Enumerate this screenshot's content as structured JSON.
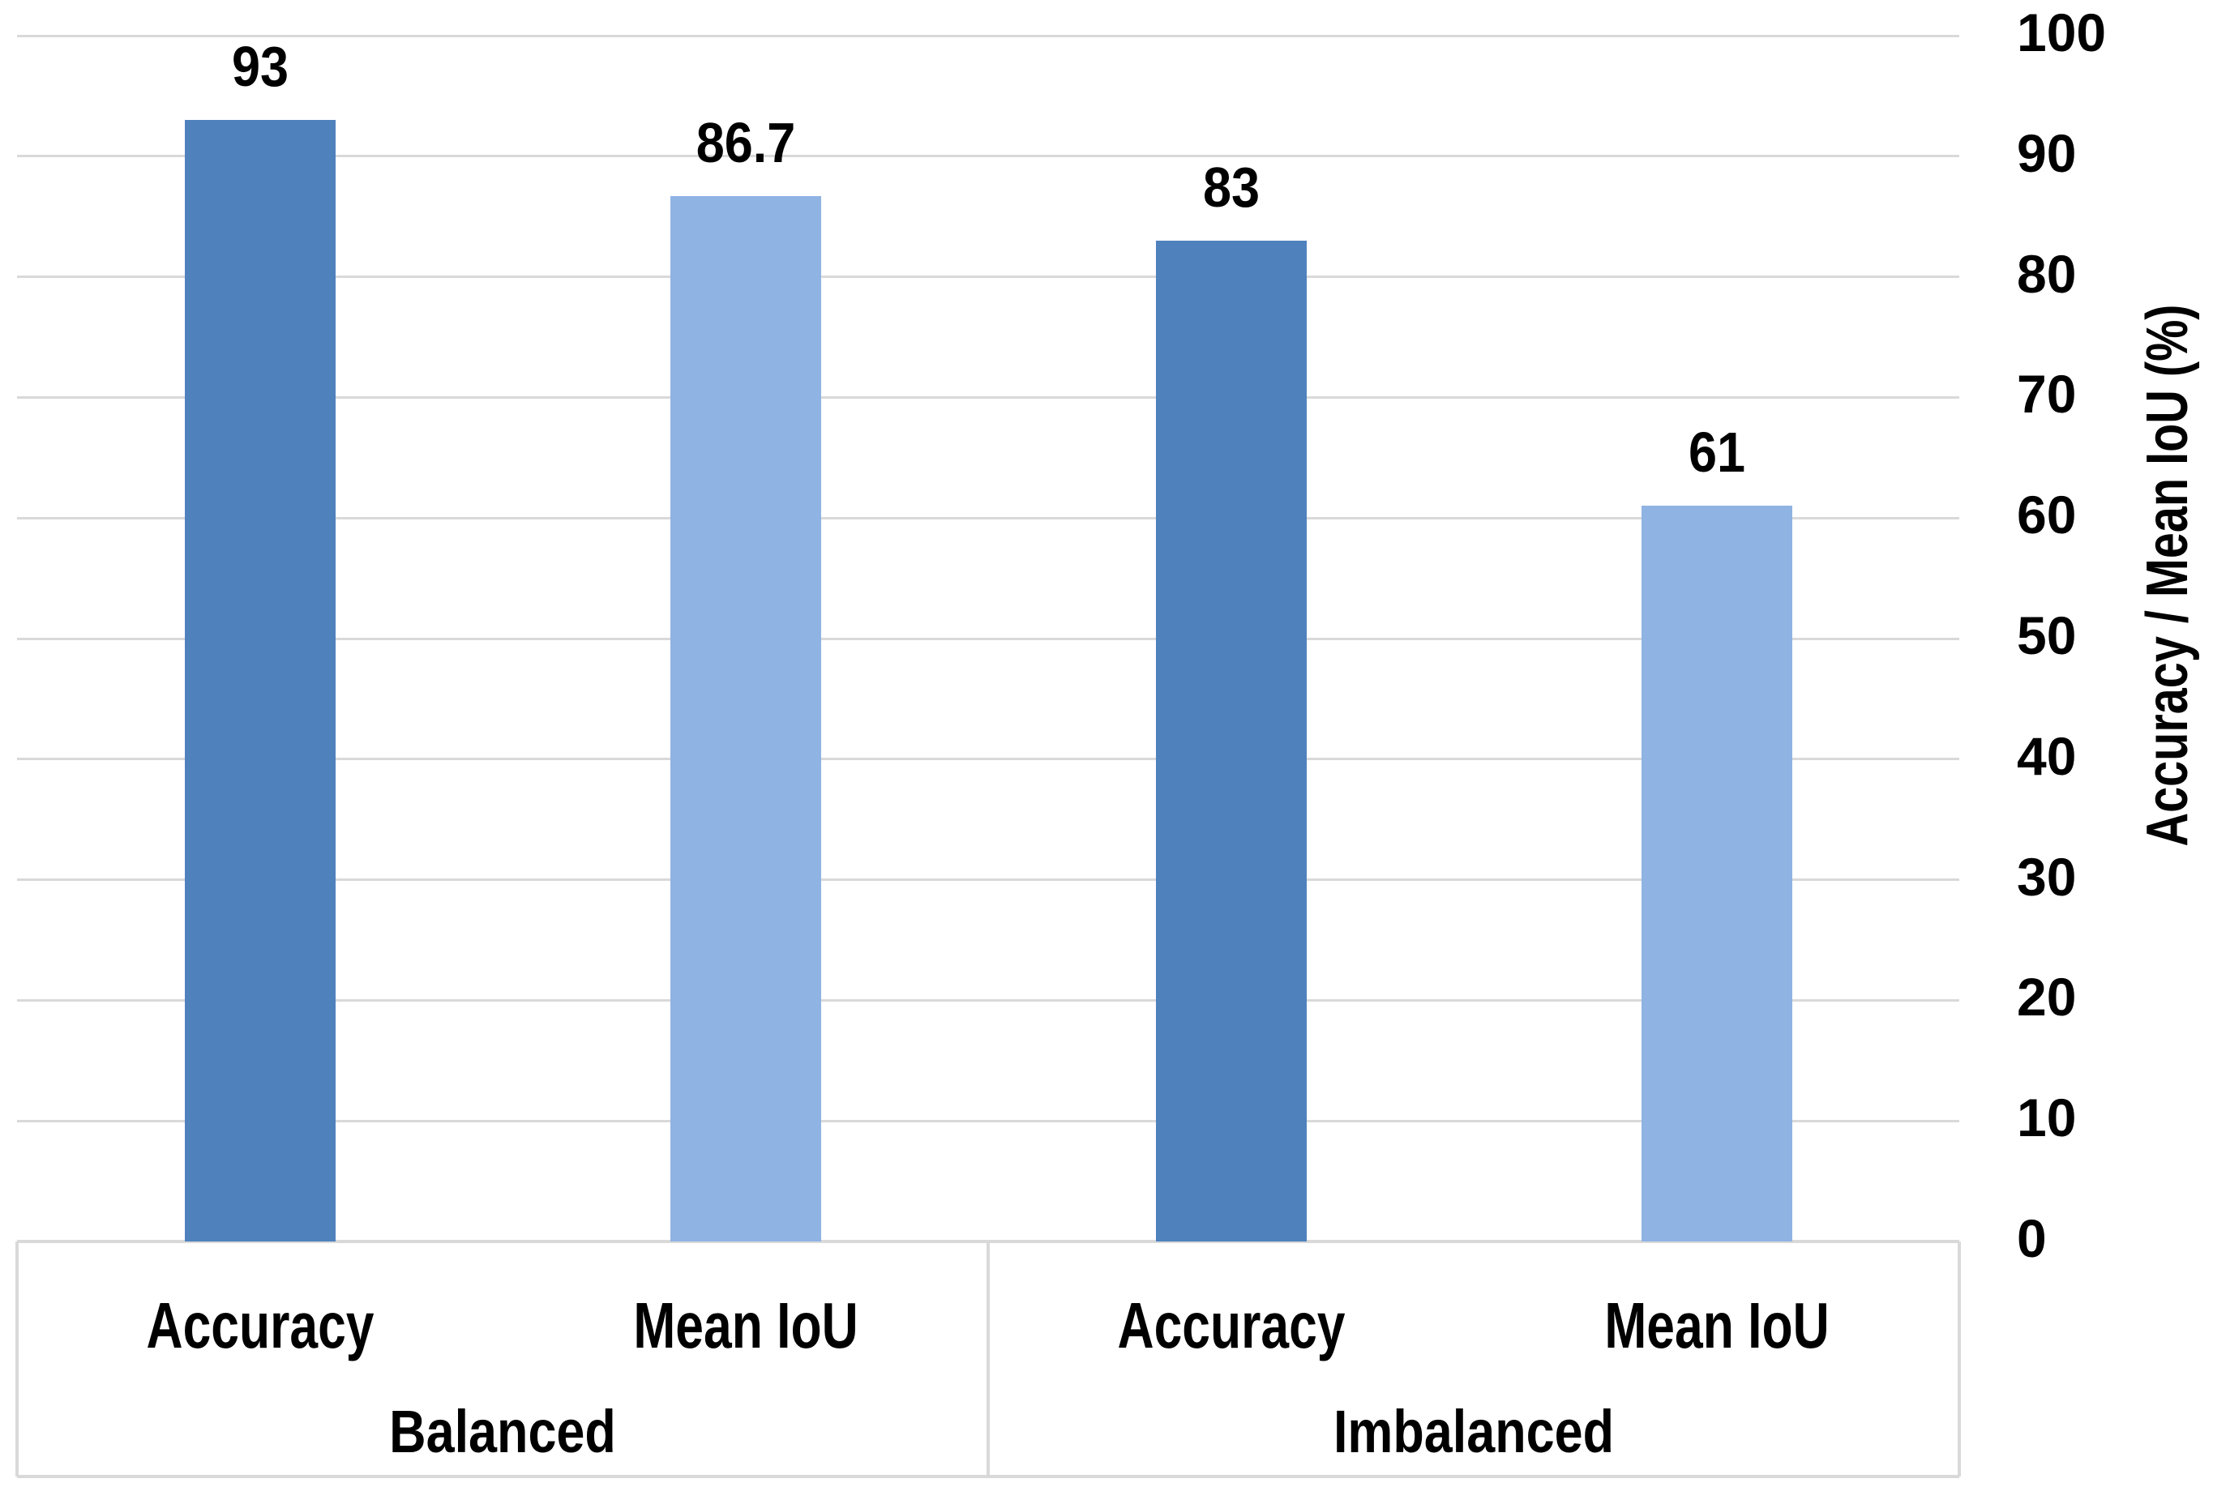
{
  "chart_data": {
    "type": "bar",
    "title": "",
    "ylabel": "Accuracy / Mean IoU (%)",
    "xlabel": "",
    "ylim": [
      0,
      100
    ],
    "yticks": [
      0,
      10,
      20,
      30,
      40,
      50,
      60,
      70,
      80,
      90,
      100
    ],
    "grid": "horizontal",
    "legend": "none",
    "axis_side": "right",
    "groups": [
      {
        "label": "Balanced",
        "bars": [
          {
            "category": "Accuracy",
            "series": "Accuracy",
            "value": 93,
            "data_label": "93"
          },
          {
            "category": "Mean IoU",
            "series": "Mean IoU",
            "value": 86.7,
            "data_label": "86.7"
          }
        ]
      },
      {
        "label": "Imbalanced",
        "bars": [
          {
            "category": "Accuracy",
            "series": "Accuracy",
            "value": 83,
            "data_label": "83"
          },
          {
            "category": "Mean IoU",
            "series": "Mean IoU",
            "value": 61,
            "data_label": "61"
          }
        ]
      }
    ],
    "colors": {
      "Accuracy": "#4F81BD",
      "Mean IoU": "#8FB3E3"
    },
    "gridline_color": "#D9D9D9",
    "axis_line_color": "#D9D9D9",
    "text_color": "#000000",
    "background_color": "#FFFFFF"
  }
}
